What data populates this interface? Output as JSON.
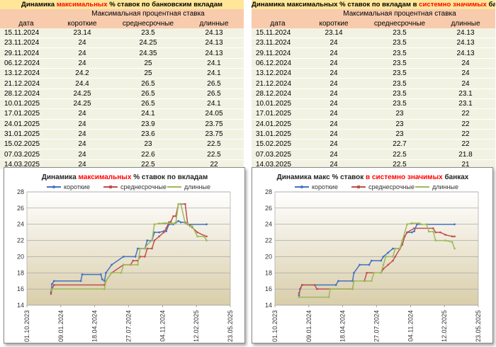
{
  "colors": {
    "short": "#4472c4",
    "mid": "#c0504d",
    "long": "#9bbb59",
    "title_bg": "#ffe699",
    "header_bg": "#f8cbad",
    "row_bg": "#f2f2e3",
    "accent": "#ff0000"
  },
  "tables": [
    {
      "title_pre": "Динамика ",
      "title_red": "максимальных",
      "title_post": " % ставок по банковским вкладам",
      "subheader": "Максимальная процентная ставка",
      "columns": [
        "дата",
        "короткие",
        "среднесрочные",
        "длинные"
      ],
      "rows": [
        [
          "15.11.2024",
          "23.14",
          "23.5",
          "24.13"
        ],
        [
          "23.11.2024",
          "24",
          "24.25",
          "24.13"
        ],
        [
          "29.11.2024",
          "24",
          "24.35",
          "24.13"
        ],
        [
          "06.12.2024",
          "24",
          "25",
          "24.1"
        ],
        [
          "13.12.2024",
          "24.2",
          "25",
          "24.1"
        ],
        [
          "21.12.2024",
          "24.4",
          "26.5",
          "26.5"
        ],
        [
          "28.12.2024",
          "24.25",
          "26.5",
          "26.5"
        ],
        [
          "10.01.2025",
          "24.25",
          "26.5",
          "24.1"
        ],
        [
          "17.01.2025",
          "24",
          "24.1",
          "24.05"
        ],
        [
          "24.01.2025",
          "24",
          "23.9",
          "23.75"
        ],
        [
          "31.01.2025",
          "24",
          "23.6",
          "23.75"
        ],
        [
          "15.02.2025",
          "24",
          "23",
          "22.5"
        ],
        [
          "07.03.2025",
          "24",
          "22.6",
          "22.5"
        ],
        [
          "14.03.2025",
          "24",
          "22.5",
          "22"
        ]
      ]
    },
    {
      "title_pre": "Динамика ",
      "title_red": "",
      "title_post": "максимальных % ставок по вкладам в ",
      "title_red2": "системно значимых",
      "title_post2": " банках",
      "subheader": "Максимальная процентная ставка",
      "columns": [
        "дата",
        "короткие",
        "среднесрочные",
        "длинные"
      ],
      "rows": [
        [
          "15.11.2024",
          "23.14",
          "23.5",
          "24.13"
        ],
        [
          "23.11.2024",
          "24",
          "23.5",
          "24.13"
        ],
        [
          "29.11.2024",
          "24",
          "23.5",
          "24.13"
        ],
        [
          "06.12.2024",
          "24",
          "23.5",
          "24"
        ],
        [
          "13.12.2024",
          "24",
          "23.5",
          "24"
        ],
        [
          "21.12.2024",
          "24",
          "23.5",
          "24"
        ],
        [
          "28.12.2024",
          "24",
          "23.5",
          "23.1"
        ],
        [
          "10.01.2025",
          "24",
          "23.5",
          "23.1"
        ],
        [
          "17.01.2025",
          "24",
          "23",
          "22"
        ],
        [
          "24.01.2025",
          "24",
          "23",
          "22"
        ],
        [
          "31.01.2025",
          "24",
          "23",
          "22"
        ],
        [
          "15.02.2025",
          "24",
          "22.7",
          "22"
        ],
        [
          "07.03.2025",
          "24",
          "22.5",
          "21.8"
        ],
        [
          "14.03.2025",
          "24",
          "22.5",
          "21"
        ]
      ]
    }
  ],
  "chart_data": [
    {
      "type": "line",
      "title_pre": "Динамика ",
      "title_red": "максимальных",
      "title_post": " % ставок по вкладам",
      "legend": [
        "короткие",
        "среднесрочные",
        "длинные"
      ],
      "legend_placement": "top",
      "ylim": [
        14,
        28
      ],
      "yticks": [
        14,
        16,
        18,
        20,
        22,
        24,
        26,
        28
      ],
      "xlim": [
        "2023-10-01",
        "2025-05-23"
      ],
      "xticks": [
        "01.10.2023",
        "09.01.2024",
        "18.04.2024",
        "27.07.2024",
        "04.11.2024",
        "12.02.2025",
        "23.05.2025"
      ],
      "grid": true,
      "series": [
        {
          "name": "короткие",
          "points": [
            [
              "2023-12-11",
              15.6
            ],
            [
              "2023-12-14",
              16.6
            ],
            [
              "2023-12-20",
              17.0
            ],
            [
              "2024-03-08",
              17.0
            ],
            [
              "2024-03-12",
              17.8
            ],
            [
              "2024-05-06",
              17.8
            ],
            [
              "2024-05-10",
              17.2
            ],
            [
              "2024-05-17",
              17.0
            ],
            [
              "2024-05-21",
              18.0
            ],
            [
              "2024-06-07",
              19.0
            ],
            [
              "2024-07-12",
              20.0
            ],
            [
              "2024-08-16",
              20.0
            ],
            [
              "2024-08-23",
              21.0
            ],
            [
              "2024-09-13",
              21.0
            ],
            [
              "2024-09-20",
              22.0
            ],
            [
              "2024-10-04",
              22.0
            ],
            [
              "2024-10-11",
              23.0
            ],
            [
              "2024-10-25",
              23.0
            ],
            [
              "2024-11-08",
              23.14
            ],
            [
              "2024-11-15",
              23.14
            ],
            [
              "2024-11-23",
              24.0
            ],
            [
              "2024-12-06",
              24.0
            ],
            [
              "2024-12-13",
              24.2
            ],
            [
              "2024-12-21",
              24.4
            ],
            [
              "2024-12-28",
              24.25
            ],
            [
              "2025-01-10",
              24.25
            ],
            [
              "2025-01-17",
              24.0
            ],
            [
              "2025-03-14",
              24.0
            ]
          ]
        },
        {
          "name": "среднесрочные",
          "points": [
            [
              "2023-12-11",
              15.4
            ],
            [
              "2023-12-14",
              16.0
            ],
            [
              "2023-12-20",
              16.5
            ],
            [
              "2024-05-17",
              16.5
            ],
            [
              "2024-05-21",
              17.0
            ],
            [
              "2024-06-07",
              18.0
            ],
            [
              "2024-07-12",
              19.0
            ],
            [
              "2024-08-02",
              19.0
            ],
            [
              "2024-08-09",
              19.5
            ],
            [
              "2024-08-23",
              19.5
            ],
            [
              "2024-08-30",
              20.0
            ],
            [
              "2024-09-13",
              20.0
            ],
            [
              "2024-09-20",
              21.0
            ],
            [
              "2024-10-04",
              21.0
            ],
            [
              "2024-10-11",
              22.0
            ],
            [
              "2024-10-25",
              22.5
            ],
            [
              "2024-11-08",
              23.0
            ],
            [
              "2024-11-15",
              23.5
            ],
            [
              "2024-11-23",
              24.25
            ],
            [
              "2024-11-29",
              24.35
            ],
            [
              "2024-12-06",
              25.0
            ],
            [
              "2024-12-13",
              25.0
            ],
            [
              "2024-12-21",
              26.5
            ],
            [
              "2024-12-28",
              26.5
            ],
            [
              "2025-01-10",
              26.5
            ],
            [
              "2025-01-17",
              24.1
            ],
            [
              "2025-01-24",
              23.9
            ],
            [
              "2025-01-31",
              23.6
            ],
            [
              "2025-02-15",
              23.0
            ],
            [
              "2025-03-07",
              22.6
            ],
            [
              "2025-03-14",
              22.5
            ]
          ]
        },
        {
          "name": "длинные",
          "points": [
            [
              "2023-12-11",
              15.8
            ],
            [
              "2023-12-14",
              16.0
            ],
            [
              "2024-05-17",
              16.0
            ],
            [
              "2024-05-21",
              17.0
            ],
            [
              "2024-06-07",
              18.0
            ],
            [
              "2024-07-05",
              18.0
            ],
            [
              "2024-07-12",
              19.0
            ],
            [
              "2024-08-23",
              19.0
            ],
            [
              "2024-08-30",
              21.0
            ],
            [
              "2024-09-13",
              21.0
            ],
            [
              "2024-09-20",
              21.5
            ],
            [
              "2024-10-04",
              22.0
            ],
            [
              "2024-10-11",
              24.0
            ],
            [
              "2024-10-25",
              24.1
            ],
            [
              "2024-11-08",
              24.13
            ],
            [
              "2024-11-15",
              24.13
            ],
            [
              "2024-11-29",
              24.13
            ],
            [
              "2024-12-06",
              24.1
            ],
            [
              "2024-12-13",
              24.1
            ],
            [
              "2024-12-21",
              26.5
            ],
            [
              "2024-12-28",
              26.5
            ],
            [
              "2025-01-10",
              24.1
            ],
            [
              "2025-01-17",
              24.05
            ],
            [
              "2025-01-24",
              23.75
            ],
            [
              "2025-01-31",
              23.75
            ],
            [
              "2025-02-15",
              22.5
            ],
            [
              "2025-03-07",
              22.5
            ],
            [
              "2025-03-14",
              22.0
            ]
          ]
        }
      ]
    },
    {
      "type": "line",
      "title_pre": "Динамика макс % ставок ",
      "title_red": "в системно значимых",
      "title_post": " банках",
      "legend": [
        "короткие",
        "среднесрочные",
        "длинные"
      ],
      "legend_placement": "top",
      "ylim": [
        14,
        28
      ],
      "yticks": [
        14,
        16,
        18,
        20,
        22,
        24,
        26,
        28
      ],
      "xlim": [
        "2023-10-01",
        "2025-05-23"
      ],
      "xticks": [
        "01.10.2023",
        "09.01.2024",
        "18.04.2024",
        "27.07.2024",
        "04.11.2024",
        "12.02.2025",
        "23.05.2025"
      ],
      "grid": true,
      "series": [
        {
          "name": "короткие",
          "points": [
            [
              "2023-12-11",
              15.2
            ],
            [
              "2023-12-14",
              16.0
            ],
            [
              "2023-12-20",
              16.5
            ],
            [
              "2024-03-29",
              16.5
            ],
            [
              "2024-04-05",
              17.0
            ],
            [
              "2024-05-17",
              17.0
            ],
            [
              "2024-05-21",
              18.0
            ],
            [
              "2024-06-07",
              19.0
            ],
            [
              "2024-07-05",
              19.0
            ],
            [
              "2024-07-12",
              19.5
            ],
            [
              "2024-08-09",
              19.5
            ],
            [
              "2024-08-16",
              20.0
            ],
            [
              "2024-08-30",
              20.5
            ],
            [
              "2024-09-13",
              21.0
            ],
            [
              "2024-10-04",
              21.0
            ],
            [
              "2024-10-11",
              22.0
            ],
            [
              "2024-10-25",
              23.0
            ],
            [
              "2024-11-08",
              23.0
            ],
            [
              "2024-11-15",
              23.14
            ],
            [
              "2024-11-23",
              24.0
            ],
            [
              "2025-03-14",
              24.0
            ]
          ]
        },
        {
          "name": "среднесрочные",
          "points": [
            [
              "2023-12-11",
              15.5
            ],
            [
              "2023-12-20",
              16.5
            ],
            [
              "2024-01-26",
              16.5
            ],
            [
              "2024-02-02",
              16.0
            ],
            [
              "2024-05-17",
              16.0
            ],
            [
              "2024-05-21",
              17.0
            ],
            [
              "2024-06-21",
              17.0
            ],
            [
              "2024-06-28",
              18.0
            ],
            [
              "2024-08-09",
              18.0
            ],
            [
              "2024-08-16",
              18.5
            ],
            [
              "2024-08-30",
              19.0
            ],
            [
              "2024-09-13",
              19.5
            ],
            [
              "2024-09-20",
              20.0
            ],
            [
              "2024-10-04",
              21.0
            ],
            [
              "2024-10-11",
              21.5
            ],
            [
              "2024-10-18",
              22.5
            ],
            [
              "2024-10-25",
              23.0
            ],
            [
              "2024-11-15",
              23.5
            ],
            [
              "2025-01-10",
              23.5
            ],
            [
              "2025-01-17",
              23.0
            ],
            [
              "2025-01-31",
              23.0
            ],
            [
              "2025-02-15",
              22.7
            ],
            [
              "2025-03-07",
              22.5
            ],
            [
              "2025-03-14",
              22.5
            ]
          ]
        },
        {
          "name": "длинные",
          "points": [
            [
              "2023-12-11",
              15.0
            ],
            [
              "2024-03-08",
              15.0
            ],
            [
              "2024-03-12",
              16.0
            ],
            [
              "2024-05-17",
              16.0
            ],
            [
              "2024-05-21",
              17.0
            ],
            [
              "2024-07-12",
              17.0
            ],
            [
              "2024-07-19",
              18.0
            ],
            [
              "2024-08-09",
              18.0
            ],
            [
              "2024-08-16",
              19.0
            ],
            [
              "2024-08-23",
              20.0
            ],
            [
              "2024-09-13",
              20.0
            ],
            [
              "2024-09-20",
              21.0
            ],
            [
              "2024-10-04",
              21.0
            ],
            [
              "2024-10-11",
              22.0
            ],
            [
              "2024-10-25",
              24.0
            ],
            [
              "2024-11-08",
              24.13
            ],
            [
              "2024-11-29",
              24.13
            ],
            [
              "2024-12-06",
              24.0
            ],
            [
              "2024-12-21",
              24.0
            ],
            [
              "2024-12-28",
              23.1
            ],
            [
              "2025-01-10",
              23.1
            ],
            [
              "2025-01-17",
              22.0
            ],
            [
              "2025-02-15",
              22.0
            ],
            [
              "2025-03-07",
              21.8
            ],
            [
              "2025-03-14",
              21.0
            ]
          ]
        }
      ]
    }
  ]
}
